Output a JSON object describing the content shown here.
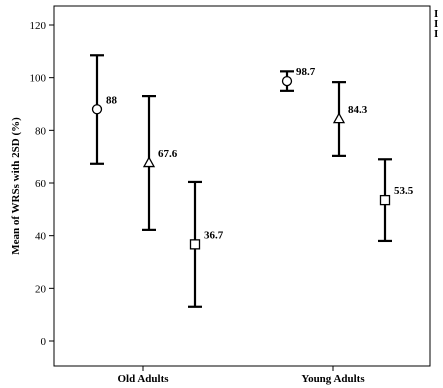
{
  "chart_data": {
    "type": "errorbar",
    "title": "",
    "xlabel": "",
    "ylabel": "Mean of WRSs with 2SD (%)",
    "ylim": [
      -7,
      126
    ],
    "yticks": [
      "0",
      "20",
      "40",
      "60",
      "80",
      "100",
      "120"
    ],
    "ytick_values": [
      0,
      20,
      40,
      60,
      80,
      100,
      120
    ],
    "categories": [
      "Old Adults",
      "Young Adults"
    ],
    "grid": false,
    "legend_position": "right (clipped)",
    "legend_fragments": [
      "I",
      "I",
      "I"
    ],
    "series": [
      {
        "marker": "circle",
        "values": [
          88,
          98.7
        ],
        "lower": [
          67.3,
          95.0
        ],
        "upper": [
          108.5,
          102.4
        ],
        "labels": [
          "88",
          "98.7"
        ]
      },
      {
        "marker": "triangle",
        "values": [
          67.6,
          84.3
        ],
        "lower": [
          42.2,
          70.3
        ],
        "upper": [
          93.0,
          98.3
        ],
        "labels": [
          "67.6",
          "84.3"
        ]
      },
      {
        "marker": "square",
        "values": [
          36.7,
          53.5
        ],
        "lower": [
          13.0,
          38.0
        ],
        "upper": [
          60.4,
          69.0
        ],
        "labels": [
          "36.7",
          "53.5"
        ]
      }
    ]
  }
}
